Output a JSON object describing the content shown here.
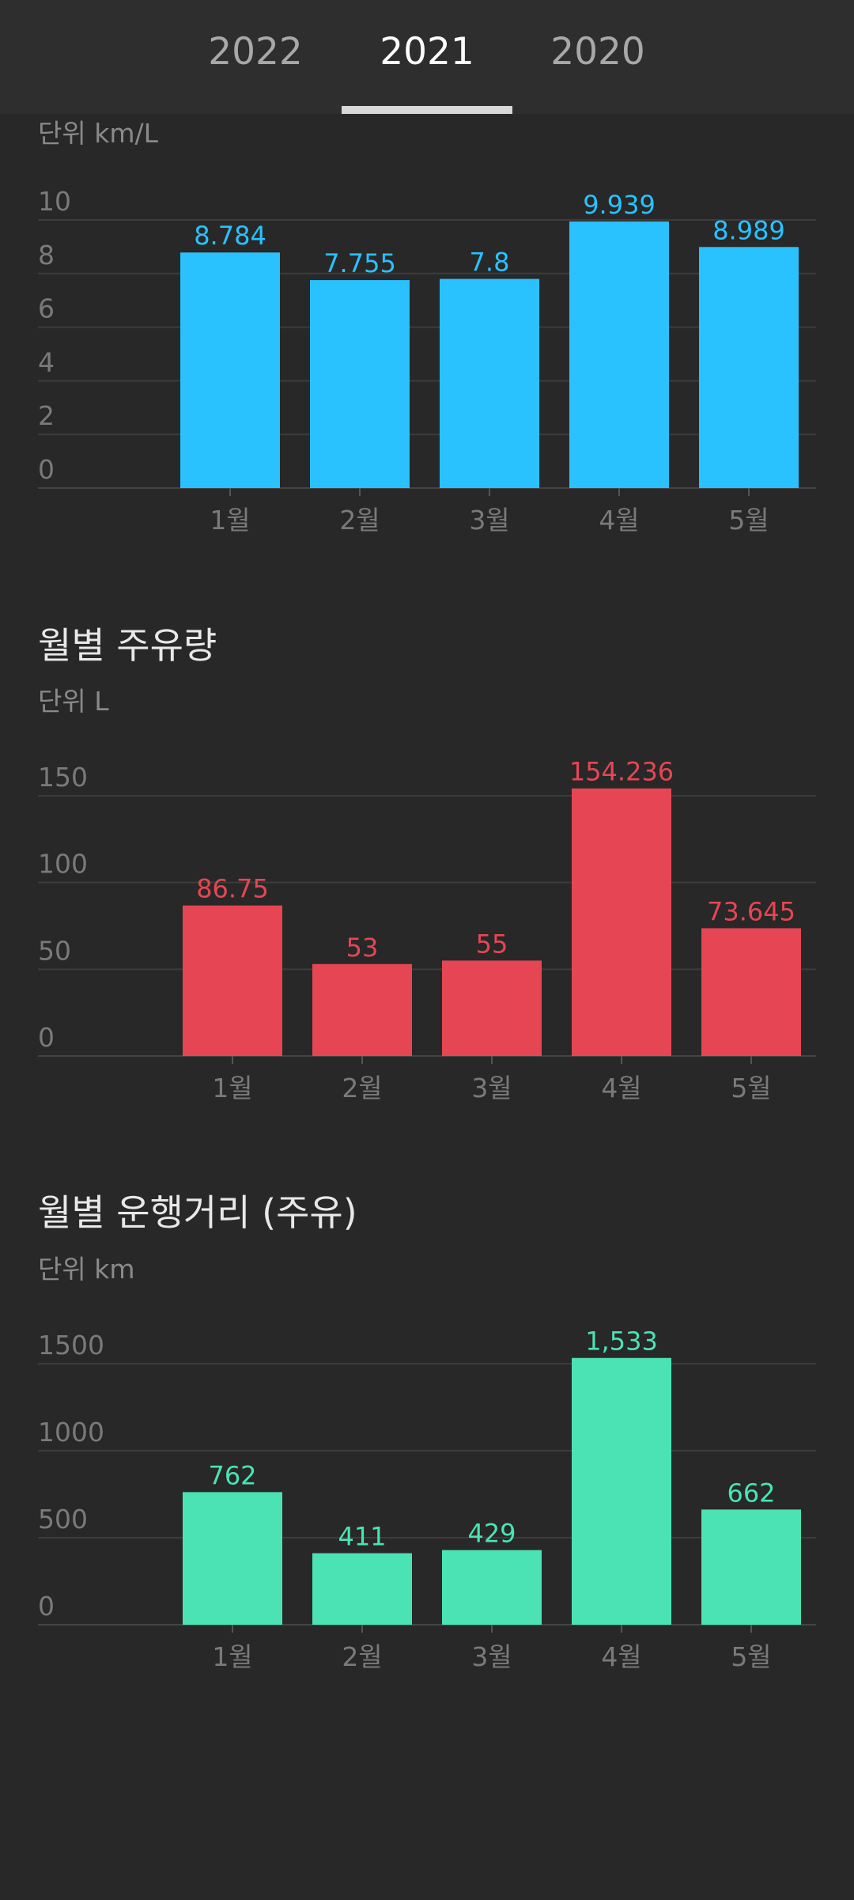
{
  "tabs": [
    {
      "label": "2022",
      "active": false
    },
    {
      "label": "2021",
      "active": true
    },
    {
      "label": "2020",
      "active": false
    }
  ],
  "sections": [
    {
      "title": "",
      "unit": "단위 km/L"
    },
    {
      "title": "월별 주유량",
      "unit": "단위 L"
    },
    {
      "title": "월별 운행거리 (주유)",
      "unit": "단위 km"
    }
  ],
  "chart_data": [
    {
      "type": "bar",
      "categories": [
        "1월",
        "2월",
        "3월",
        "4월",
        "5월"
      ],
      "values": [
        8.784,
        7.755,
        7.8,
        9.939,
        8.989
      ],
      "value_labels": [
        "8.784",
        "7.755",
        "7.8",
        "9.939",
        "8.989"
      ],
      "yticks": [
        0,
        2,
        4,
        6,
        8,
        10
      ],
      "ylim": [
        0,
        10
      ],
      "color": "#29c2ff",
      "grid": true,
      "ylabel": "단위 km/L"
    },
    {
      "type": "bar",
      "categories": [
        "1월",
        "2월",
        "3월",
        "4월",
        "5월"
      ],
      "values": [
        86.75,
        53,
        55,
        154.236,
        73.645
      ],
      "value_labels": [
        "86.75",
        "53",
        "55",
        "154.236",
        "73.645"
      ],
      "yticks": [
        0,
        50,
        100,
        150
      ],
      "ylim": [
        0,
        150
      ],
      "color": "#e64653",
      "grid": true,
      "title": "월별 주유량",
      "ylabel": "단위 L"
    },
    {
      "type": "bar",
      "categories": [
        "1월",
        "2월",
        "3월",
        "4월",
        "5월"
      ],
      "values": [
        762,
        411,
        429,
        1533,
        662
      ],
      "value_labels": [
        "762",
        "411",
        "429",
        "1,533",
        "662"
      ],
      "yticks": [
        0,
        500,
        1000,
        1500
      ],
      "ylim": [
        0,
        1500
      ],
      "color": "#4be3b4",
      "grid": true,
      "title": "월별 운행거리 (주유)",
      "ylabel": "단위 km"
    }
  ]
}
